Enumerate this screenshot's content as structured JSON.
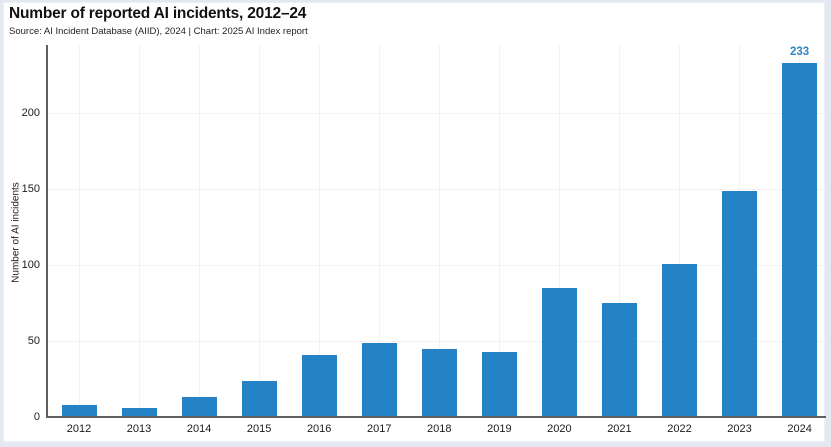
{
  "page": {
    "title": "Number of reported AI incidents, 2012–24",
    "source_line": "Source: AI Incident Database (AIID), 2024 | Chart: 2025 AI Index report"
  },
  "chart_data": {
    "type": "bar",
    "title": "Number of reported AI incidents, 2012–24",
    "subtitle": "Source: AI Incident Database (AIID), 2024 | Chart: 2025 AI Index report",
    "categories": [
      "2012",
      "2013",
      "2014",
      "2015",
      "2016",
      "2017",
      "2018",
      "2019",
      "2020",
      "2021",
      "2022",
      "2023",
      "2024"
    ],
    "values": [
      8,
      6,
      13,
      24,
      41,
      49,
      45,
      43,
      85,
      75,
      101,
      149,
      233
    ],
    "xlabel": "",
    "ylabel": "Number of AI incidents",
    "yticks": [
      0,
      50,
      100,
      150,
      200
    ],
    "ylim": [
      0,
      245
    ],
    "grid": true,
    "legend_position": "none",
    "annotations": [
      {
        "category": "2024",
        "label": "233"
      }
    ],
    "colors": {
      "bar": "#2383c5",
      "data_label": "#2e86c5",
      "axis_line": "#5f5f5f",
      "gridline": "#f2f3f6",
      "title_text": "#111111",
      "tick_text": "#1c1c1c",
      "page_background": "#e4e9f1",
      "chart_background": "#ffffff"
    }
  }
}
